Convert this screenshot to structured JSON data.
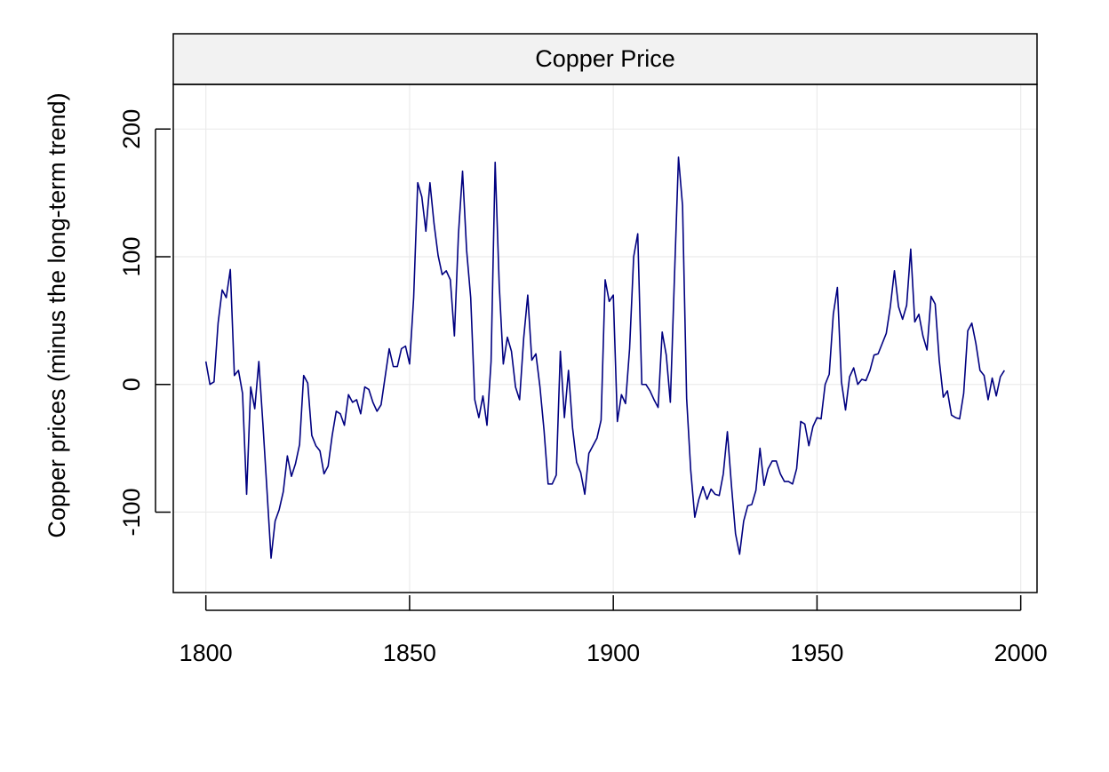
{
  "chart_data": {
    "type": "line",
    "title": "",
    "panel_title": "Copper Price",
    "xlabel": "",
    "ylabel": "Copper prices (minus the long-term trend)",
    "xlim": [
      1792,
      2004
    ],
    "ylim": [
      -163,
      235
    ],
    "x_ticks": [
      1800,
      1850,
      1900,
      1950,
      2000
    ],
    "x_tick_labels": [
      "1800",
      "1850",
      "1900",
      "1950",
      "2000"
    ],
    "y_ticks": [
      -100,
      0,
      100,
      200
    ],
    "y_tick_labels": [
      "-100",
      "0",
      "100",
      "200"
    ],
    "grid": true,
    "legend": "none",
    "colors": {
      "line": "#000080",
      "grid": "#EBEBEB",
      "strip_fill": "#F2F2F2",
      "frame": "#000000"
    },
    "series": [
      {
        "x": [
          1800,
          1801,
          1802,
          1803,
          1804,
          1805,
          1806,
          1807,
          1808,
          1809,
          1810,
          1811,
          1812,
          1813,
          1814,
          1815,
          1816,
          1817,
          1818,
          1819,
          1820,
          1821,
          1822,
          1823,
          1824,
          1825,
          1826,
          1827,
          1828,
          1829,
          1830,
          1831,
          1832,
          1833,
          1834,
          1835,
          1836,
          1837,
          1838,
          1839,
          1840,
          1841,
          1842,
          1843,
          1844,
          1845,
          1846,
          1847,
          1848,
          1849,
          1850,
          1851,
          1852,
          1853,
          1854,
          1855,
          1856,
          1857,
          1858,
          1859,
          1860,
          1861,
          1862,
          1863,
          1864,
          1865,
          1866,
          1867,
          1868,
          1869,
          1870,
          1871,
          1872,
          1873,
          1874,
          1875,
          1876,
          1877,
          1878,
          1879,
          1880,
          1881,
          1882,
          1883,
          1884,
          1885,
          1886,
          1887,
          1888,
          1889,
          1890,
          1891,
          1892,
          1893,
          1894,
          1895,
          1896,
          1897,
          1898,
          1899,
          1900,
          1901,
          1902,
          1903,
          1904,
          1905,
          1906,
          1907,
          1908,
          1909,
          1910,
          1911,
          1912,
          1913,
          1914,
          1915,
          1916,
          1917,
          1918,
          1919,
          1920,
          1921,
          1922,
          1923,
          1924,
          1925,
          1926,
          1927,
          1928,
          1929,
          1930,
          1931,
          1932,
          1933,
          1934,
          1935,
          1936,
          1937,
          1938,
          1939,
          1940,
          1941,
          1942,
          1943,
          1944,
          1945,
          1946,
          1947,
          1948,
          1949,
          1950,
          1951,
          1952,
          1953,
          1954,
          1955,
          1956,
          1957,
          1958,
          1959,
          1960,
          1961,
          1962,
          1963,
          1964,
          1965,
          1966,
          1967,
          1968,
          1969,
          1970,
          1971,
          1972,
          1973,
          1974,
          1975,
          1976,
          1977,
          1978,
          1979,
          1980,
          1981,
          1982,
          1983,
          1984,
          1985,
          1986,
          1987,
          1988,
          1989,
          1990,
          1991,
          1992,
          1993,
          1994,
          1995,
          1996
        ],
        "values": [
          18,
          0,
          2,
          48,
          74,
          68,
          90,
          7,
          11,
          -7,
          -86,
          -2,
          -19,
          18,
          -31,
          -83,
          -136,
          -107,
          -98,
          -84,
          -56,
          -72,
          -62,
          -47,
          7,
          1,
          -40,
          -48,
          -52,
          -70,
          -64,
          -40,
          -21,
          -23,
          -32,
          -8,
          -14,
          -12,
          -23,
          -2,
          -4,
          -14,
          -21,
          -16,
          6,
          28,
          14,
          14,
          28,
          30,
          16,
          68,
          158,
          147,
          120,
          158,
          126,
          101,
          86,
          89,
          82,
          38,
          118,
          167,
          105,
          68,
          -12,
          -26,
          -9,
          -32,
          18,
          174,
          78,
          16,
          37,
          26,
          -2,
          -12,
          36,
          70,
          19,
          24,
          -2,
          -36,
          -78,
          -78,
          -71,
          26,
          -26,
          11,
          -34,
          -61,
          -69,
          -86,
          -54,
          -48,
          -42,
          -28,
          82,
          65,
          70,
          -29,
          -8,
          -15,
          28,
          100,
          118,
          0,
          0,
          -5,
          -12,
          -18,
          41,
          23,
          -14,
          83,
          178,
          140,
          -11,
          -67,
          -104,
          -90,
          -80,
          -90,
          -82,
          -86,
          -87,
          -70,
          -37,
          -79,
          -117,
          -133,
          -107,
          -95,
          -94,
          -83,
          -50,
          -79,
          -66,
          -60,
          -60,
          -70,
          -76,
          -76,
          -78,
          -66,
          -29,
          -31,
          -48,
          -33,
          -26,
          -27,
          0,
          8,
          55,
          76,
          2,
          -20,
          6,
          13,
          0,
          4,
          3,
          11,
          23,
          24,
          32,
          40,
          61,
          89,
          61,
          51,
          62,
          106,
          49,
          55,
          38,
          27,
          69,
          63,
          19,
          -10,
          -5,
          -24,
          -26,
          -27,
          -7,
          42,
          48,
          32,
          11,
          7,
          -12,
          5,
          -9,
          6,
          11
        ]
      }
    ]
  }
}
